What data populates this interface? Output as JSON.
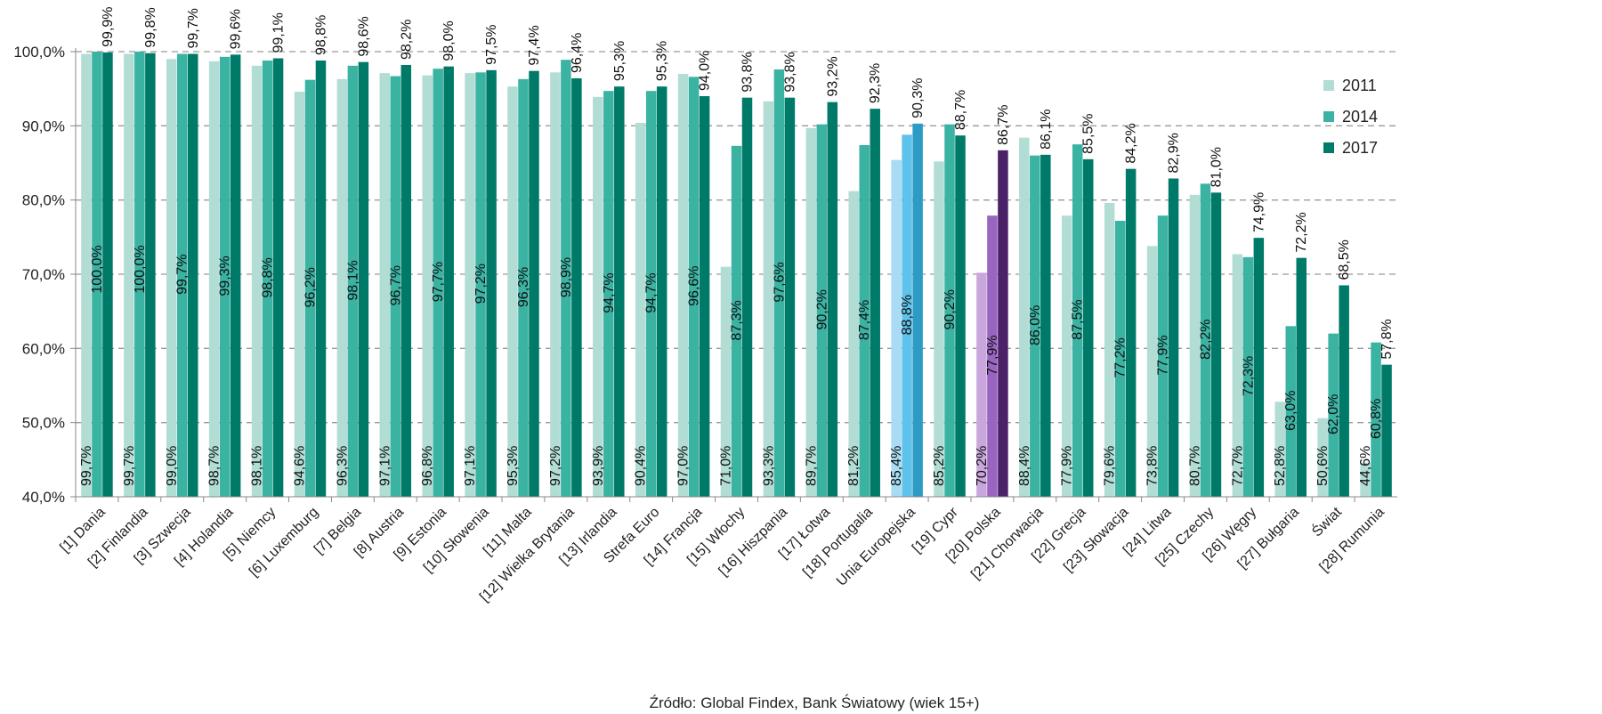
{
  "chart_data": {
    "type": "bar",
    "title": "",
    "xlabel": "",
    "ylabel": "",
    "ylim": [
      40,
      100
    ],
    "yticks": [
      "40,0%",
      "50,0%",
      "60,0%",
      "70,0%",
      "80,0%",
      "90,0%",
      "100,0%"
    ],
    "grid": true,
    "legend_position": "right",
    "source_note": "Źródło: Global Findex, Bank Światowy (wiek 15+)",
    "categories": [
      "[1] Dania",
      "[2] Finlandia",
      "[3] Szwecja",
      "[4] Holandia",
      "[5] Niemcy",
      "[6] Luxemburg",
      "[7] Belgia",
      "[8] Austria",
      "[9] Estonia",
      "[10] Słowenia",
      "[11] Malta",
      "[12] Wielka Brytania",
      "[13] Irlandia",
      "Strefa Euro",
      "[14] Francja",
      "[15] Włochy",
      "[16] Hiszpania",
      "[17] Łotwa",
      "[18] Portugalia",
      "Unia Europejska",
      "[19] Cypr",
      "[20] Polska",
      "[21] Chorwacja",
      "[22] Grecja",
      "[23] Słowacja",
      "[24] Litwa",
      "[25] Czechy",
      "[26] Węgry",
      "[27] Bułgaria",
      "Świat",
      "[28] Rumunia"
    ],
    "series": [
      {
        "name": "2011",
        "color": "#b2ddd4",
        "values": [
          99.7,
          99.7,
          99.0,
          98.7,
          98.1,
          94.6,
          96.3,
          97.1,
          96.8,
          97.1,
          95.3,
          97.2,
          93.9,
          90.4,
          97.0,
          71.0,
          93.3,
          89.7,
          81.2,
          85.4,
          85.2,
          70.2,
          88.4,
          77.9,
          79.6,
          73.8,
          80.7,
          72.7,
          52.8,
          50.6,
          44.6
        ],
        "labels": [
          "99,7%",
          "99,7%",
          "99,0%",
          "98,7%",
          "98,1%",
          "94,6%",
          "96,3%",
          "97,1%",
          "96,8%",
          "97,1%",
          "95,3%",
          "97,2%",
          "93,9%",
          "90,4%",
          "97,0%",
          "71,0%",
          "93,3%",
          "89,7%",
          "81,2%",
          "85,4%",
          "85,2%",
          "70,2%",
          "88,4%",
          "77,9%",
          "79,6%",
          "73,8%",
          "80,7%",
          "72,7%",
          "52,8%",
          "50,6%",
          "44,6%"
        ]
      },
      {
        "name": "2014",
        "color": "#3ab3a3",
        "values": [
          100.0,
          100.0,
          99.7,
          99.3,
          98.8,
          96.2,
          98.1,
          96.7,
          97.7,
          97.2,
          96.3,
          98.9,
          94.7,
          94.7,
          96.6,
          87.3,
          97.6,
          90.2,
          87.4,
          88.8,
          90.2,
          77.9,
          86.0,
          87.5,
          77.2,
          77.9,
          82.2,
          72.3,
          63.0,
          62.0,
          60.8
        ],
        "labels": [
          "100,0%",
          "100,0%",
          "99,7%",
          "99,3%",
          "98,8%",
          "96,2%",
          "98,1%",
          "96,7%",
          "97,7%",
          "97,2%",
          "96,3%",
          "98,9%",
          "94,7%",
          "94,7%",
          "96,6%",
          "87,3%",
          "97,6%",
          "90,2%",
          "87,4%",
          "88,8%",
          "90,2%",
          "77,9%",
          "86,0%",
          "87,5%",
          "77,2%",
          "77,9%",
          "82,2%",
          "72,3%",
          "63,0%",
          "62,0%",
          "60,8%"
        ]
      },
      {
        "name": "2017",
        "color": "#007a68",
        "values": [
          99.9,
          99.8,
          99.7,
          99.6,
          99.1,
          98.8,
          98.6,
          98.2,
          98.0,
          97.5,
          97.4,
          96.4,
          95.3,
          95.3,
          94.0,
          93.8,
          93.8,
          93.2,
          92.3,
          90.3,
          88.7,
          86.7,
          86.1,
          85.5,
          84.2,
          82.9,
          81.0,
          74.9,
          72.2,
          68.5,
          57.8
        ],
        "labels": [
          "99,9%",
          "99,8%",
          "99,7%",
          "99,6%",
          "99,1%",
          "98,8%",
          "98,6%",
          "98,2%",
          "98,0%",
          "97,5%",
          "97,4%",
          "96,4%",
          "95,3%",
          "95,3%",
          "94,0%",
          "93,8%",
          "93,8%",
          "93,2%",
          "92,3%",
          "90,3%",
          "88,7%",
          "86,7%",
          "86,1%",
          "85,5%",
          "84,2%",
          "82,9%",
          "81,0%",
          "74,9%",
          "72,2%",
          "68,5%",
          "57,8%"
        ]
      }
    ],
    "highlights": [
      {
        "category": "Unia Europejska",
        "colors": [
          "#a8dcf5",
          "#5ec2ea",
          "#2c9cc5"
        ]
      },
      {
        "category": "[20] Polska",
        "colors": [
          "#c9a7dd",
          "#9a65c1",
          "#4b2168"
        ]
      }
    ],
    "grid_color": "#9a9a9a",
    "axis_color": "#888888"
  }
}
